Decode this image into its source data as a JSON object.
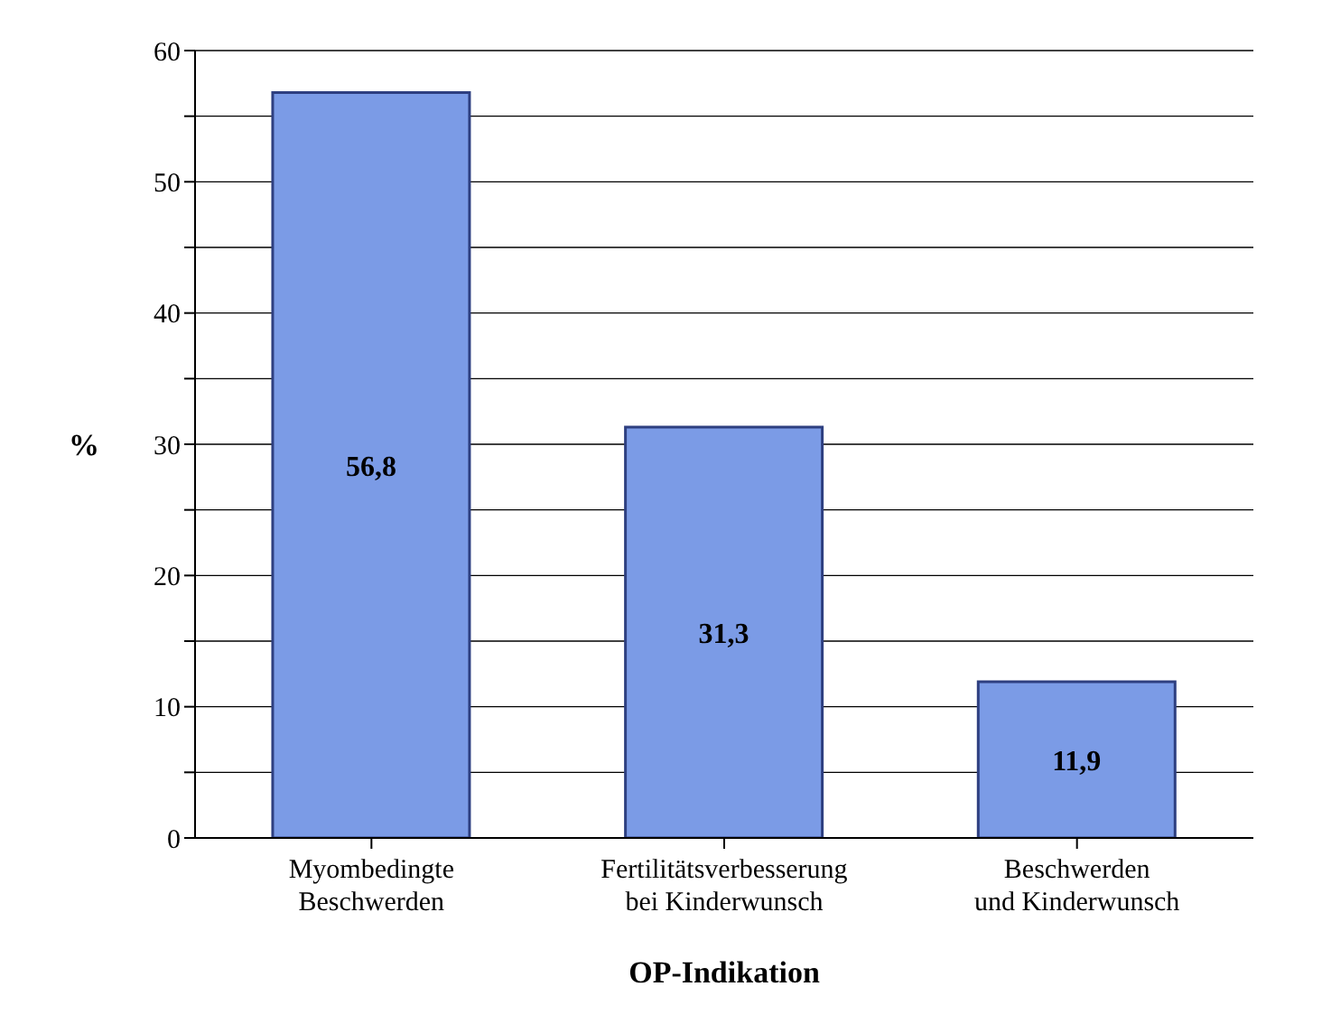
{
  "chart_data": {
    "type": "bar",
    "xlabel": "OP-Indikation",
    "ylabel": "%",
    "categories": [
      "Myombedingte\nBeschwerden",
      "Fertilitätsverbesserung\nbei Kinderwunsch",
      "Beschwerden\nund Kinderwunsch"
    ],
    "values": [
      56.8,
      31.3,
      11.9
    ],
    "value_labels": [
      "56,8",
      "31,3",
      "11,9"
    ],
    "color": "#7b9be6",
    "ylim": [
      0,
      60
    ],
    "yticks": [
      0,
      {
        "value": 5,
        "label": null
      },
      10,
      {
        "value": 15,
        "label": null
      },
      20,
      {
        "value": 25,
        "label": null
      },
      30,
      {
        "value": 35,
        "label": null
      },
      40,
      {
        "value": 45,
        "label": null
      },
      50,
      {
        "value": 55,
        "label": null
      },
      60
    ],
    "grid": "y"
  }
}
